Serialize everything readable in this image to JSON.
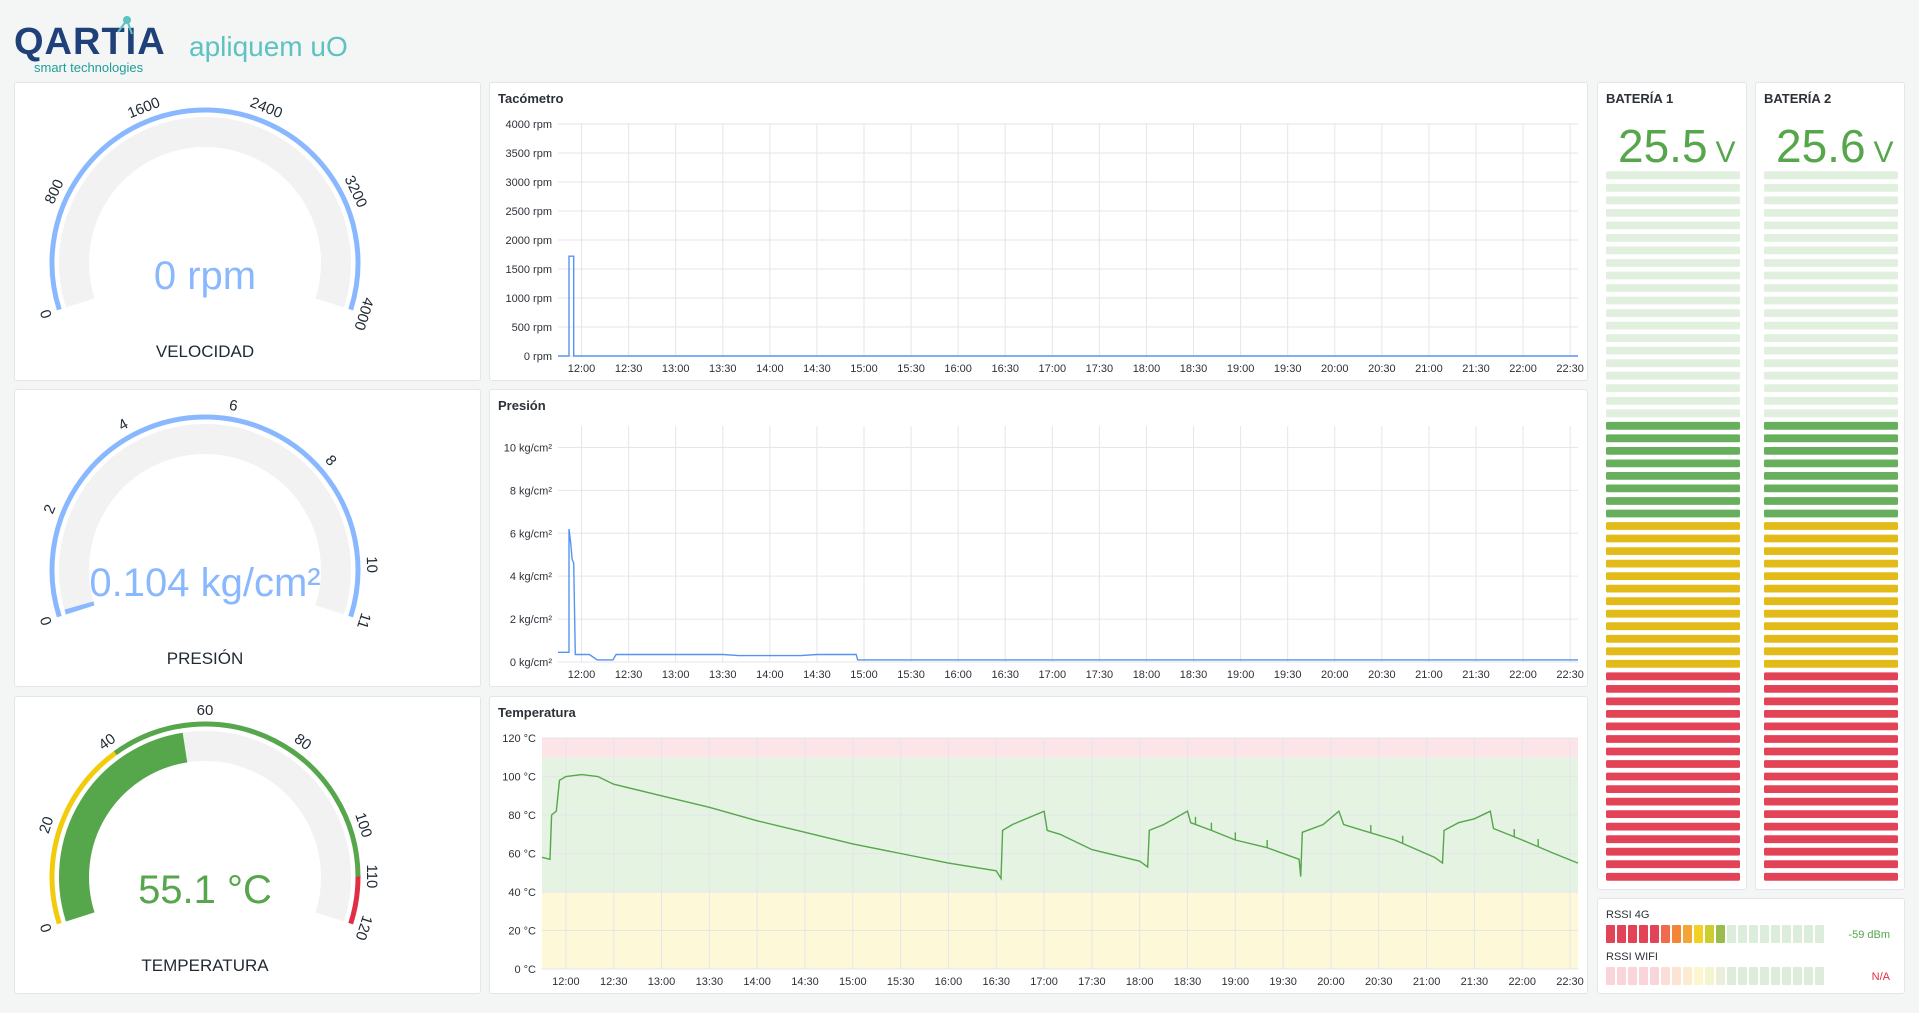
{
  "brand": {
    "name": "QARTIA",
    "tagline": "smart technologies",
    "product": "apliquem uO",
    "colors": {
      "teal": "#1f9e9a",
      "light_teal": "#5cc2c2",
      "navy": "#20407a"
    }
  },
  "gauges": [
    {
      "id": "velocidad",
      "label": "VELOCIDAD",
      "value": "0 rpm",
      "numeric": 0,
      "min": 0,
      "max": 4000,
      "ticks": [
        "0",
        "800",
        "1600",
        "2400",
        "3200",
        "4000"
      ],
      "tick_values": [
        0,
        800,
        1600,
        2400,
        3200,
        4000
      ],
      "value_color": "#8ab8ff",
      "thresholds": [
        {
          "from": 0,
          "to": 4000,
          "color": "#8ab8ff"
        }
      ]
    },
    {
      "id": "presion",
      "label": "PRESIÓN",
      "value": "0.104 kg/cm²",
      "numeric": 0.104,
      "min": 0,
      "max": 11,
      "ticks": [
        "0",
        "2",
        "4",
        "6",
        "8",
        "10",
        "11"
      ],
      "tick_values": [
        0,
        2,
        4,
        6,
        8,
        10,
        11
      ],
      "value_color": "#8ab8ff",
      "thresholds": [
        {
          "from": 0,
          "to": 11,
          "color": "#8ab8ff"
        }
      ]
    },
    {
      "id": "temperatura",
      "label": "TEMPERATURA",
      "value": "55.1 °C",
      "numeric": 55.1,
      "min": 0,
      "max": 120,
      "ticks": [
        "0",
        "20",
        "40",
        "60",
        "80",
        "100",
        "110",
        "120"
      ],
      "tick_values": [
        0,
        20,
        40,
        60,
        80,
        100,
        110,
        120
      ],
      "value_color": "#56a64b",
      "thresholds": [
        {
          "from": 0,
          "to": 40,
          "color": "#f2cc0c"
        },
        {
          "from": 40,
          "to": 110,
          "color": "#56a64b"
        },
        {
          "from": 110,
          "to": 120,
          "color": "#e02f44"
        }
      ]
    }
  ],
  "time_axis": [
    "12:00",
    "12:30",
    "13:00",
    "13:30",
    "14:00",
    "14:30",
    "15:00",
    "15:30",
    "16:00",
    "16:30",
    "17:00",
    "17:30",
    "18:00",
    "18:30",
    "19:00",
    "19:30",
    "20:00",
    "20:30",
    "21:00",
    "21:30",
    "22:00",
    "22:30"
  ],
  "chart_data": [
    {
      "type": "line",
      "title": "Tacómetro",
      "y_ticks": [
        "0 rpm",
        "500 rpm",
        "1000 rpm",
        "1500 rpm",
        "2000 rpm",
        "2500 rpm",
        "3000 rpm",
        "3500 rpm",
        "4000 rpm"
      ],
      "ylim": [
        0,
        4000
      ],
      "xlim": [
        "11:45",
        "22:35"
      ],
      "grid": true,
      "series": [
        {
          "color": "#5794f2",
          "points": [
            [
              "11:45",
              0
            ],
            [
              "11:52",
              0
            ],
            [
              "11:52",
              1720
            ],
            [
              "11:55",
              1720
            ],
            [
              "11:55",
              0
            ],
            [
              "22:35",
              0
            ]
          ]
        }
      ],
      "bands": []
    },
    {
      "type": "line",
      "title": "Presión",
      "y_ticks": [
        "0 kg/cm²",
        "2 kg/cm²",
        "4 kg/cm²",
        "6 kg/cm²",
        "8 kg/cm²",
        "10 kg/cm²"
      ],
      "ylim": [
        0,
        11
      ],
      "xlim": [
        "11:45",
        "22:35"
      ],
      "grid": true,
      "series": [
        {
          "color": "#5794f2",
          "points": [
            [
              "11:45",
              0.45
            ],
            [
              "11:52",
              0.45
            ],
            [
              "11:52",
              6.2
            ],
            [
              "11:53",
              5.6
            ],
            [
              "11:54",
              4.8
            ],
            [
              "11:55",
              4.6
            ],
            [
              "11:56",
              0.35
            ],
            [
              "12:05",
              0.35
            ],
            [
              "12:10",
              0.1
            ],
            [
              "12:20",
              0.1
            ],
            [
              "12:22",
              0.35
            ],
            [
              "13:30",
              0.35
            ],
            [
              "13:40",
              0.3
            ],
            [
              "14:20",
              0.3
            ],
            [
              "14:30",
              0.35
            ],
            [
              "14:55",
              0.35
            ],
            [
              "14:56",
              0.1
            ],
            [
              "22:35",
              0.1
            ]
          ]
        }
      ],
      "bands": []
    },
    {
      "type": "line",
      "title": "Temperatura",
      "y_ticks": [
        "0 °C",
        "20 °C",
        "40 °C",
        "60 °C",
        "80 °C",
        "100 °C",
        "120 °C"
      ],
      "ylim": [
        0,
        120
      ],
      "xlim": [
        "11:45",
        "22:35"
      ],
      "grid": true,
      "series": [
        {
          "color": "#56a64b",
          "points": [
            [
              "11:45",
              58
            ],
            [
              "11:50",
              57
            ],
            [
              "11:51",
              80
            ],
            [
              "11:54",
              82
            ],
            [
              "11:56",
              98
            ],
            [
              "12:00",
              100
            ],
            [
              "12:10",
              101
            ],
            [
              "12:20",
              100
            ],
            [
              "12:30",
              96
            ],
            [
              "13:00",
              90
            ],
            [
              "13:30",
              84
            ],
            [
              "14:00",
              77
            ],
            [
              "14:30",
              71
            ],
            [
              "15:00",
              65
            ],
            [
              "15:30",
              60
            ],
            [
              "16:00",
              55
            ],
            [
              "16:30",
              51
            ],
            [
              "16:33",
              47
            ],
            [
              "16:34",
              72
            ],
            [
              "16:40",
              75
            ],
            [
              "17:00",
              82
            ],
            [
              "17:02",
              72
            ],
            [
              "17:10",
              70
            ],
            [
              "17:30",
              62
            ],
            [
              "18:00",
              56
            ],
            [
              "18:05",
              53
            ],
            [
              "18:06",
              72
            ],
            [
              "18:15",
              75
            ],
            [
              "18:30",
              82
            ],
            [
              "18:32",
              76
            ],
            [
              "18:45",
              72
            ],
            [
              "19:00",
              67
            ],
            [
              "19:20",
              63
            ],
            [
              "19:40",
              57
            ],
            [
              "19:41",
              48
            ],
            [
              "19:42",
              71
            ],
            [
              "19:55",
              75
            ],
            [
              "20:05",
              82
            ],
            [
              "20:08",
              75
            ],
            [
              "20:20",
              72
            ],
            [
              "20:40",
              67
            ],
            [
              "21:05",
              58
            ],
            [
              "21:10",
              55
            ],
            [
              "21:11",
              72
            ],
            [
              "21:20",
              76
            ],
            [
              "21:30",
              78
            ],
            [
              "21:40",
              82
            ],
            [
              "21:42",
              73
            ],
            [
              "22:00",
              67
            ],
            [
              "22:20",
              60
            ],
            [
              "22:35",
              55
            ]
          ]
        }
      ],
      "bands": [
        {
          "from": 110,
          "to": 120,
          "color": "#fde4e8"
        },
        {
          "from": 40,
          "to": 110,
          "color": "#e5f3e3"
        },
        {
          "from": 0,
          "to": 40,
          "color": "#fdf8d8"
        }
      ]
    },
    {
      "type": "bar",
      "title": "BATERÍA 1",
      "value": 25.5,
      "display": "25.5",
      "unit": "V",
      "segments": 57,
      "lit_segments": 37,
      "zones": [
        {
          "count": 17,
          "color": "#e02f44"
        },
        {
          "count": 12,
          "color": "#e0b400"
        },
        {
          "count": 10,
          "color": "#56a64b"
        },
        {
          "count": 18,
          "color": "#56a64b"
        }
      ]
    },
    {
      "type": "bar",
      "title": "BATERÍA 2",
      "value": 25.6,
      "display": "25.6",
      "unit": "V",
      "segments": 57,
      "lit_segments": 37,
      "zones": [
        {
          "count": 17,
          "color": "#e02f44"
        },
        {
          "count": 12,
          "color": "#e0b400"
        },
        {
          "count": 10,
          "color": "#56a64b"
        },
        {
          "count": 18,
          "color": "#56a64b"
        }
      ]
    }
  ],
  "rssi": [
    {
      "label": "RSSI 4G",
      "value": "-59 dBm",
      "value_color": "#56a64b",
      "segments": 20,
      "lit": 11,
      "colors": [
        "#e02f44",
        "#e02f44",
        "#e02f44",
        "#e02f44",
        "#e02f44",
        "#ef5a3a",
        "#f2781f",
        "#f29b1f",
        "#f2cc0c",
        "#c8c81a",
        "#8fb537",
        "#56a64b",
        "#56a64b",
        "#56a64b",
        "#56a64b",
        "#56a64b",
        "#56a64b",
        "#56a64b",
        "#56a64b",
        "#56a64b"
      ]
    },
    {
      "label": "RSSI WIFI",
      "value": "N/A",
      "value_color": "#e02f44",
      "segments": 20,
      "lit": 0,
      "colors": [
        "#e02f44",
        "#e02f44",
        "#e02f44",
        "#e02f44",
        "#e02f44",
        "#ef5a3a",
        "#f2781f",
        "#f29b1f",
        "#f2cc0c",
        "#c8c81a",
        "#8fb537",
        "#56a64b",
        "#56a64b",
        "#56a64b",
        "#56a64b",
        "#56a64b",
        "#56a64b",
        "#56a64b",
        "#56a64b",
        "#56a64b"
      ]
    }
  ]
}
